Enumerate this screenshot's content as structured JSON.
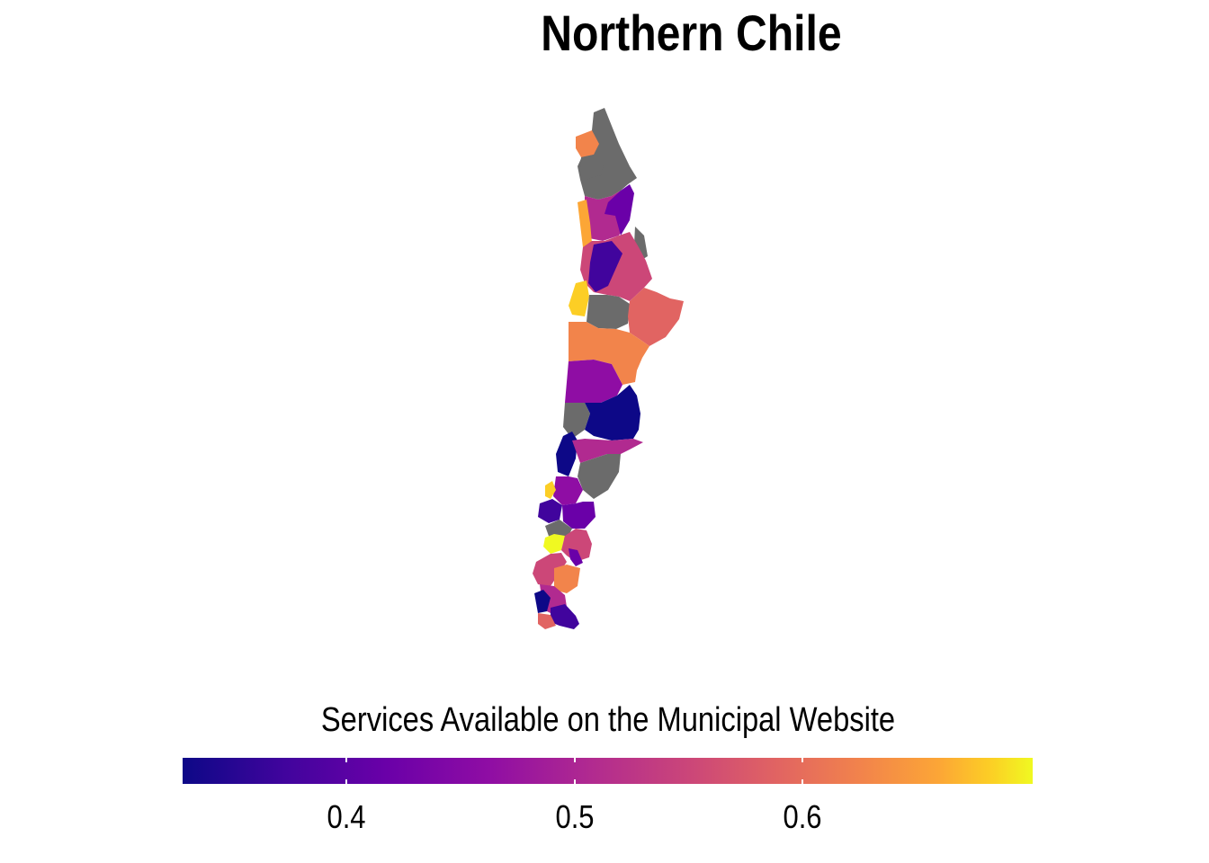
{
  "title": "Northern Chile",
  "legend": {
    "title": "Services Available on the Municipal Website",
    "range": [
      0.33,
      0.7
    ],
    "ticks": [
      {
        "value": 0.4,
        "label": "0.4"
      },
      {
        "value": 0.5,
        "label": "0.5"
      },
      {
        "value": 0.6,
        "label": "0.6"
      }
    ],
    "colors": [
      "#0d0887",
      "#6a00a8",
      "#b12a90",
      "#e16462",
      "#fca636",
      "#f0f921"
    ],
    "na_color": "#6b6b6b"
  }
}
